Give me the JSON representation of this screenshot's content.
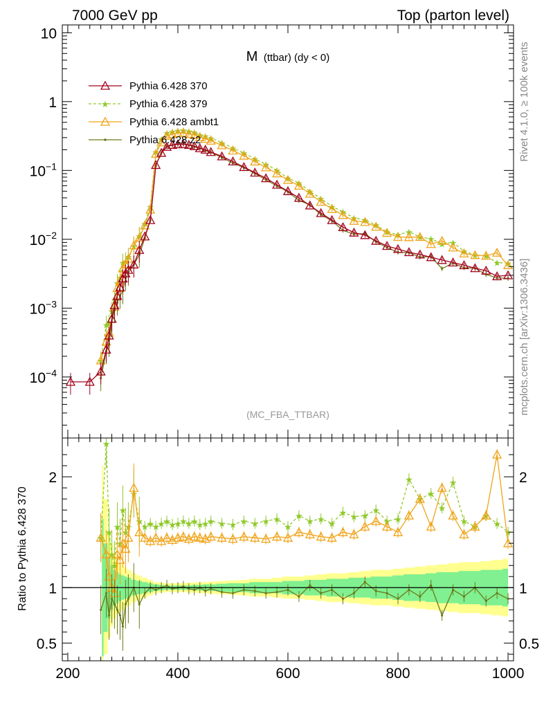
{
  "header": {
    "left": "7000 GeV pp",
    "right": "Top (parton level)"
  },
  "side_labels": {
    "rivet": "Rivet 4.1.0, ≥ 100k events",
    "mcplots": "mcplots.cern.ch [arXiv:1306.3436]"
  },
  "ratio_ylabel": "Ratio to Pythia 6.428 370",
  "colors": {
    "p370": "#a0001a",
    "p379": "#8fc92a",
    "ambt1": "#f0a318",
    "z2": "#6b7a18",
    "band_inner": "#80f090",
    "band_outer": "#ffff90"
  },
  "chart_data": [
    {
      "type": "line",
      "panel": "main",
      "title": "M (ttbar) (dy < 0)",
      "title_main": "M",
      "title_sub": "(ttbar) (dy < 0)",
      "analysis_tag": "(MC_FBA_TTBAR)",
      "yscale": "log",
      "ylim": [
        1.3e-05,
        13
      ],
      "xlim": [
        190,
        1010
      ],
      "yticks": [
        {
          "v": 10,
          "base": "10",
          "exp": ""
        },
        {
          "v": 1,
          "base": "1",
          "exp": ""
        },
        {
          "v": 0.1,
          "base": "10",
          "exp": "−1"
        },
        {
          "v": 0.01,
          "base": "10",
          "exp": "−2"
        },
        {
          "v": 0.001,
          "base": "10",
          "exp": "−3"
        },
        {
          "v": 0.0001,
          "base": "10",
          "exp": "−4"
        }
      ],
      "legend_position": "top-left",
      "series": [
        {
          "name": "Pythia 6.428 370",
          "color_key": "p370",
          "marker": "triangle-open",
          "dash": "none"
        },
        {
          "name": "Pythia 6.428 379",
          "color_key": "p379",
          "marker": "star",
          "dash": "dashed"
        },
        {
          "name": "Pythia 6.428 ambt1",
          "color_key": "ambt1",
          "marker": "triangle-open",
          "dash": "none"
        },
        {
          "name": "Pythia 6.428 z2",
          "color_key": "z2",
          "marker": "dot",
          "dash": "none"
        }
      ],
      "x": [
        205,
        240,
        260,
        270,
        275,
        280,
        285,
        290,
        295,
        300,
        305,
        310,
        320,
        330,
        340,
        350,
        360,
        370,
        380,
        390,
        400,
        410,
        420,
        430,
        440,
        450,
        460,
        480,
        500,
        520,
        540,
        560,
        580,
        600,
        620,
        640,
        660,
        680,
        700,
        720,
        740,
        760,
        780,
        800,
        820,
        840,
        860,
        880,
        900,
        920,
        940,
        960,
        980,
        1000
      ],
      "reference_values": [
        8.5e-05,
        8.5e-05,
        0.00012,
        0.00025,
        0.0004,
        0.0007,
        0.0011,
        0.0015,
        0.002,
        0.0027,
        0.0032,
        0.0036,
        0.0043,
        0.007,
        0.011,
        0.019,
        0.12,
        0.18,
        0.22,
        0.235,
        0.24,
        0.24,
        0.235,
        0.225,
        0.21,
        0.2,
        0.185,
        0.16,
        0.135,
        0.112,
        0.093,
        0.077,
        0.062,
        0.05,
        0.04,
        0.031,
        0.024,
        0.019,
        0.015,
        0.0125,
        0.0115,
        0.0095,
        0.008,
        0.0072,
        0.0065,
        0.006,
        0.0055,
        0.005,
        0.0046,
        0.0042,
        0.0038,
        0.0035,
        0.0029,
        0.003
      ]
    },
    {
      "type": "line",
      "panel": "ratio",
      "ylabel": "Ratio to Pythia 6.428 370",
      "ylim": [
        0.34,
        2.35
      ],
      "xlim": [
        190,
        1010
      ],
      "xticks": [
        200,
        400,
        600,
        800,
        1000
      ],
      "yticks": [
        {
          "v": 0.5,
          "label": "0.5"
        },
        {
          "v": 1,
          "label": "1"
        },
        {
          "v": 2,
          "label": "2"
        }
      ],
      "x": [
        205,
        240,
        260,
        270,
        275,
        280,
        285,
        290,
        295,
        300,
        305,
        310,
        320,
        330,
        340,
        350,
        360,
        370,
        380,
        390,
        400,
        410,
        420,
        430,
        440,
        450,
        460,
        480,
        500,
        520,
        540,
        560,
        580,
        600,
        620,
        640,
        660,
        680,
        700,
        720,
        740,
        760,
        780,
        800,
        820,
        840,
        860,
        880,
        900,
        920,
        940,
        960,
        980,
        1000
      ],
      "band_inner": [
        0.35,
        0.35,
        0.38,
        0.6,
        0.72,
        0.8,
        0.84,
        0.86,
        0.88,
        0.89,
        0.9,
        0.91,
        0.93,
        0.94,
        0.95,
        0.96,
        0.97,
        0.975,
        0.98,
        0.98,
        0.98,
        0.98,
        0.98,
        0.975,
        0.975,
        0.97,
        0.97,
        0.965,
        0.96,
        0.96,
        0.95,
        0.95,
        0.95,
        0.94,
        0.94,
        0.93,
        0.93,
        0.92,
        0.92,
        0.91,
        0.91,
        0.9,
        0.9,
        0.89,
        0.88,
        0.88,
        0.87,
        0.86,
        0.86,
        0.85,
        0.85,
        0.84,
        0.84,
        0.83
      ],
      "band_inner_hi": [
        1.65,
        1.65,
        1.62,
        1.4,
        1.28,
        1.2,
        1.16,
        1.14,
        1.12,
        1.11,
        1.1,
        1.09,
        1.07,
        1.06,
        1.05,
        1.04,
        1.03,
        1.025,
        1.02,
        1.02,
        1.02,
        1.02,
        1.02,
        1.025,
        1.025,
        1.03,
        1.03,
        1.035,
        1.04,
        1.04,
        1.05,
        1.05,
        1.05,
        1.06,
        1.06,
        1.07,
        1.07,
        1.08,
        1.08,
        1.09,
        1.09,
        1.1,
        1.1,
        1.11,
        1.12,
        1.12,
        1.13,
        1.14,
        1.14,
        1.15,
        1.15,
        1.16,
        1.16,
        1.17
      ],
      "band_outer": [
        0.34,
        0.34,
        0.34,
        0.4,
        0.55,
        0.65,
        0.72,
        0.76,
        0.78,
        0.8,
        0.82,
        0.84,
        0.87,
        0.89,
        0.91,
        0.93,
        0.95,
        0.955,
        0.96,
        0.96,
        0.96,
        0.96,
        0.955,
        0.955,
        0.95,
        0.95,
        0.945,
        0.94,
        0.935,
        0.93,
        0.92,
        0.92,
        0.91,
        0.9,
        0.9,
        0.89,
        0.88,
        0.87,
        0.87,
        0.86,
        0.85,
        0.84,
        0.84,
        0.83,
        0.82,
        0.81,
        0.8,
        0.79,
        0.78,
        0.77,
        0.77,
        0.76,
        0.75,
        0.74
      ],
      "band_outer_hi": [
        2.2,
        2.2,
        2.1,
        1.8,
        1.5,
        1.4,
        1.3,
        1.25,
        1.22,
        1.2,
        1.18,
        1.16,
        1.13,
        1.11,
        1.09,
        1.07,
        1.05,
        1.045,
        1.04,
        1.04,
        1.04,
        1.04,
        1.045,
        1.045,
        1.05,
        1.05,
        1.055,
        1.06,
        1.065,
        1.07,
        1.08,
        1.08,
        1.09,
        1.1,
        1.1,
        1.11,
        1.12,
        1.13,
        1.13,
        1.14,
        1.15,
        1.16,
        1.16,
        1.17,
        1.18,
        1.19,
        1.2,
        1.21,
        1.22,
        1.23,
        1.23,
        1.24,
        1.25,
        1.26
      ],
      "series": [
        {
          "name": "Pythia 6.428 370",
          "color_key": "p370",
          "values": [
            1,
            1,
            1,
            1,
            1,
            1,
            1,
            1,
            1,
            1,
            1,
            1,
            1,
            1,
            1,
            1,
            1,
            1,
            1,
            1,
            1,
            1,
            1,
            1,
            1,
            1,
            1,
            1,
            1,
            1,
            1,
            1,
            1,
            1,
            1,
            1,
            1,
            1,
            1,
            1,
            1,
            1,
            1,
            1,
            1,
            1,
            1,
            1,
            1,
            1,
            1,
            1,
            1,
            1
          ]
        },
        {
          "name": "Pythia 6.428 379",
          "color_key": "p379",
          "values": [
            null,
            null,
            1.45,
            2.3,
            1.5,
            1.3,
            1.2,
            1.55,
            1.4,
            1.7,
            1.5,
            1.55,
            1.85,
            1.6,
            1.55,
            1.58,
            1.55,
            1.58,
            1.6,
            1.57,
            1.58,
            1.6,
            1.58,
            1.6,
            1.57,
            1.58,
            1.6,
            1.58,
            1.57,
            1.6,
            1.58,
            1.6,
            1.62,
            1.55,
            1.65,
            1.6,
            1.62,
            1.58,
            1.68,
            1.64,
            1.65,
            1.7,
            1.6,
            1.62,
            1.98,
            1.8,
            1.85,
            1.72,
            1.95,
            1.6,
            1.55,
            1.65,
            1.58,
            1.5
          ]
        },
        {
          "name": "Pythia 6.428 ambt1",
          "color_key": "ambt1",
          "values": [
            null,
            null,
            1.45,
            1.3,
            1.1,
            1.0,
            0.95,
            1.3,
            1.25,
            1.4,
            1.35,
            1.45,
            1.9,
            1.5,
            1.45,
            1.42,
            1.45,
            1.42,
            1.45,
            1.43,
            1.45,
            1.46,
            1.44,
            1.46,
            1.45,
            1.44,
            1.46,
            1.45,
            1.44,
            1.46,
            1.45,
            1.44,
            1.46,
            1.45,
            1.5,
            1.48,
            1.46,
            1.45,
            1.5,
            1.48,
            1.55,
            1.6,
            1.55,
            1.5,
            1.65,
            1.8,
            1.55,
            1.9,
            1.65,
            1.48,
            1.55,
            1.65,
            2.2,
            1.4
          ]
        },
        {
          "name": "Pythia 6.428 z2",
          "color_key": "z2",
          "values": [
            null,
            null,
            0.8,
            0.95,
            0.75,
            0.9,
            0.85,
            0.8,
            0.75,
            0.65,
            0.85,
            0.9,
            1.0,
            0.85,
            0.95,
            1.0,
            0.98,
            1.0,
            1.02,
            0.99,
            1.0,
            1.01,
            0.99,
            0.98,
            1.0,
            0.97,
            0.99,
            0.96,
            0.95,
            0.98,
            0.97,
            0.95,
            0.96,
            0.98,
            0.92,
            1.02,
            0.95,
            0.98,
            0.9,
            0.95,
            1.05,
            0.97,
            0.95,
            0.9,
            0.98,
            0.92,
            1.02,
            0.75,
            0.98,
            0.92,
            1.0,
            0.88,
            0.95,
            0.9
          ]
        }
      ]
    }
  ]
}
